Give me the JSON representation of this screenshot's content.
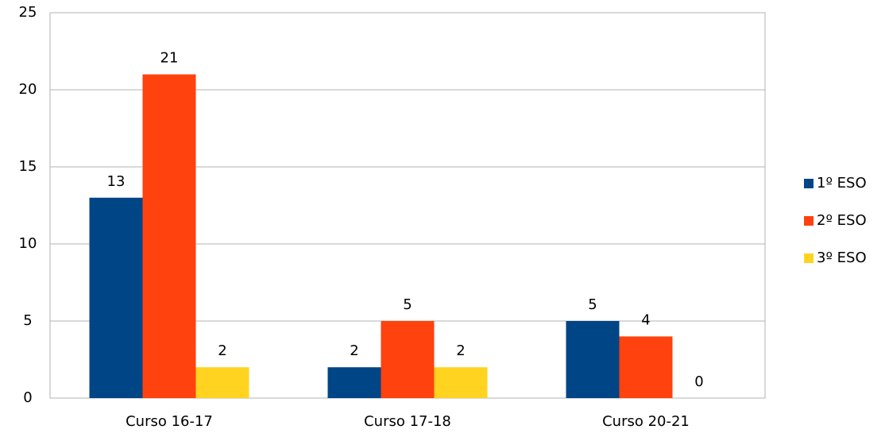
{
  "chart_data": {
    "type": "bar",
    "categories": [
      "Curso 16-17",
      "Curso 17-18",
      "Curso 20-21"
    ],
    "series": [
      {
        "name": "1º ESO",
        "color": "#004586",
        "values": [
          13,
          2,
          5
        ]
      },
      {
        "name": "2º ESO",
        "color": "#ff420e",
        "values": [
          21,
          5,
          4
        ]
      },
      {
        "name": "3º ESO",
        "color": "#ffd320",
        "values": [
          2,
          2,
          0
        ]
      }
    ],
    "ylim": [
      0,
      25
    ],
    "yticks": [
      0,
      5,
      10,
      15,
      20,
      25
    ],
    "grid": true,
    "legend": "right"
  }
}
